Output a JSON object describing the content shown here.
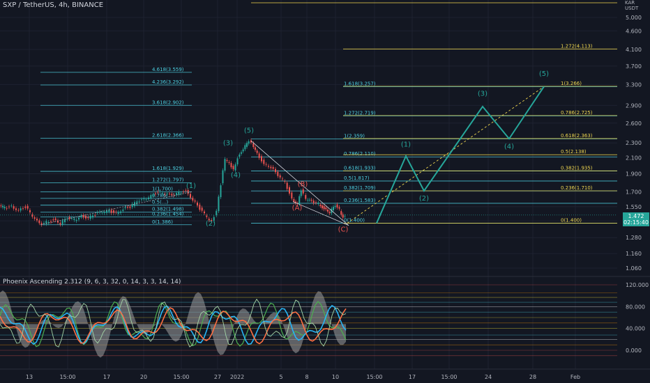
{
  "header": {
    "title": "SXP / TetherUS, 4h, BINANCE"
  },
  "indicator": {
    "title": "Phoenix Ascending 2.312 (9, 6, 3, 32, 0, 14, 3, 3, 14, 14)"
  },
  "price_badge": {
    "price": "1.472",
    "countdown": "02:15:40"
  },
  "currency_label": "USDT",
  "currency_top_fragment": "KAR",
  "colors": {
    "background": "#131722",
    "grid": "#1e2230",
    "text": "#b2b5be",
    "fib_blue": "#4dd0e1",
    "fib_yellow": "#f0d74f",
    "wave_green": "#26a69a",
    "wave_red": "#ef5350",
    "up_candle": "#26a69a",
    "down_candle": "#ef5350"
  },
  "chart_data": {
    "type": "candlestick",
    "title": "SXP / TetherUS, 4h, BINANCE",
    "y_scale": "log",
    "ylim": [
      1.0,
      6.0
    ],
    "y_ticks": [
      "5.000",
      "4.600",
      "4.100",
      "3.700",
      "3.300",
      "2.900",
      "2.600",
      "2.300",
      "2.100",
      "1.900",
      "1.700",
      "1.550",
      "1.420",
      "1.280",
      "1.160",
      "1.060"
    ],
    "x_ticks": [
      "13",
      "15:00",
      "17",
      "20",
      "15:00",
      "27",
      "2022",
      "5",
      "8",
      "10",
      "15:00",
      "17",
      "15:00",
      "24",
      "28",
      "Feb"
    ],
    "grid": true,
    "last_price": 1.472,
    "candles_close_path": [
      [
        0,
        1.56
      ],
      [
        8,
        1.54
      ],
      [
        18,
        1.55
      ],
      [
        28,
        1.52
      ],
      [
        38,
        1.55
      ],
      [
        48,
        1.46
      ],
      [
        58,
        1.39
      ],
      [
        68,
        1.41
      ],
      [
        78,
        1.43
      ],
      [
        88,
        1.4
      ],
      [
        98,
        1.44
      ],
      [
        108,
        1.43
      ],
      [
        118,
        1.46
      ],
      [
        128,
        1.45
      ],
      [
        138,
        1.48
      ],
      [
        148,
        1.5
      ],
      [
        158,
        1.51
      ],
      [
        168,
        1.49
      ],
      [
        178,
        1.53
      ],
      [
        188,
        1.55
      ],
      [
        198,
        1.6
      ],
      [
        208,
        1.62
      ],
      [
        218,
        1.66
      ],
      [
        228,
        1.7
      ],
      [
        238,
        1.68
      ],
      [
        248,
        1.66
      ],
      [
        258,
        1.69
      ],
      [
        268,
        1.71
      ],
      [
        278,
        1.62
      ],
      [
        288,
        1.53
      ],
      [
        298,
        1.45
      ],
      [
        305,
        1.41
      ],
      [
        312,
        1.52
      ],
      [
        318,
        1.78
      ],
      [
        324,
        2.08
      ],
      [
        330,
        2.02
      ],
      [
        336,
        1.95
      ],
      [
        342,
        2.1
      ],
      [
        350,
        2.22
      ],
      [
        358,
        2.33
      ],
      [
        362,
        2.3
      ],
      [
        370,
        2.15
      ],
      [
        380,
        2.02
      ],
      [
        390,
        1.98
      ],
      [
        400,
        1.88
      ],
      [
        410,
        1.8
      ],
      [
        420,
        1.62
      ],
      [
        428,
        1.58
      ],
      [
        433,
        1.72
      ],
      [
        440,
        1.62
      ],
      [
        448,
        1.6
      ],
      [
        458,
        1.58
      ],
      [
        466,
        1.53
      ],
      [
        474,
        1.5
      ],
      [
        482,
        1.56
      ],
      [
        488,
        1.52
      ],
      [
        493,
        1.45
      ],
      [
        496,
        1.47
      ]
    ],
    "fib_sets": [
      {
        "name": "fib-left",
        "color": "fib_blue",
        "levels": [
          {
            "label": "4.618(3.559)",
            "value": 3.559
          },
          {
            "label": "4.236(3.292)",
            "value": 3.292
          },
          {
            "label": "3.618(2.902)",
            "value": 2.902
          },
          {
            "label": "2.618(2.366)",
            "value": 2.366
          },
          {
            "label": "1.618(1.929)",
            "value": 1.929
          },
          {
            "label": "1.272(1.797)",
            "value": 1.797
          },
          {
            "label": "1(1.700)",
            "value": 1.7
          },
          {
            "label": "0.786(...)",
            "value": 1.632
          },
          {
            "label": "0.5(...)",
            "value": 1.565
          },
          {
            "label": "0.382(1.498)",
            "value": 1.498
          },
          {
            "label": "0.236(1.454)",
            "value": 1.454
          },
          {
            "label": "0(1.386)",
            "value": 1.386
          }
        ]
      },
      {
        "name": "fib-middle",
        "color": "fib_blue",
        "levels": [
          {
            "label": "1.618(3.257)",
            "value": 3.257
          },
          {
            "label": "1.272(2.719)",
            "value": 2.719
          },
          {
            "label": "1(2.359)",
            "value": 2.359
          },
          {
            "label": "0.786(2.110)",
            "value": 2.11
          },
          {
            "label": "0.618(1.933)",
            "value": 1.933
          },
          {
            "label": "0.5(1.817)",
            "value": 1.817
          },
          {
            "label": "0.382(1.709)",
            "value": 1.709
          },
          {
            "label": "0.236(1.583)",
            "value": 1.583
          },
          {
            "label": "0(1.400)",
            "value": 1.4
          }
        ]
      },
      {
        "name": "fib-right",
        "color": "fib_yellow",
        "levels": [
          {
            "label": "1.272(4.113)",
            "value": 4.113
          },
          {
            "label": "1(3.266)",
            "value": 3.266
          },
          {
            "label": "0.786(2.725)",
            "value": 2.725
          },
          {
            "label": "0.618(2.363)",
            "value": 2.363
          },
          {
            "label": "0.5(2.138)",
            "value": 2.138
          },
          {
            "label": "0.382(1.935)",
            "value": 1.935
          },
          {
            "label": "0.236(1.710)",
            "value": 1.71
          },
          {
            "label": "0(1.400)",
            "value": 1.4
          }
        ]
      }
    ],
    "wave_labels_history": [
      {
        "label": "(1)",
        "value": 1.74,
        "color": "wave_green"
      },
      {
        "label": "(2)",
        "value": 1.38,
        "color": "wave_green"
      },
      {
        "label": "(3)",
        "value": 2.27,
        "color": "wave_green"
      },
      {
        "label": "(4)",
        "value": 1.86,
        "color": "wave_green"
      },
      {
        "label": "(5)",
        "value": 2.45,
        "color": "wave_green"
      },
      {
        "label": "(A)",
        "value": 1.52,
        "color": "wave_red"
      },
      {
        "label": "(B)",
        "value": 1.76,
        "color": "wave_red"
      },
      {
        "label": "(C)",
        "value": 1.33,
        "color": "wave_red"
      }
    ],
    "projection_path": [
      [
        540,
        1.4
      ],
      [
        582,
        2.12
      ],
      [
        608,
        1.71
      ],
      [
        692,
        2.88
      ],
      [
        730,
        2.36
      ],
      [
        780,
        3.26
      ]
    ],
    "projection_labels": [
      {
        "label": "(1)",
        "value": 2.25
      },
      {
        "label": "(2)",
        "value": 1.61
      },
      {
        "label": "(3)",
        "value": 3.08
      },
      {
        "label": "(4)",
        "value": 2.22
      },
      {
        "label": "(5)",
        "value": 3.48
      }
    ],
    "indicator": {
      "ylim": [
        -20,
        125
      ],
      "y_ticks": [
        "120.000",
        "80.000",
        "40.000",
        "0.000"
      ]
    }
  }
}
